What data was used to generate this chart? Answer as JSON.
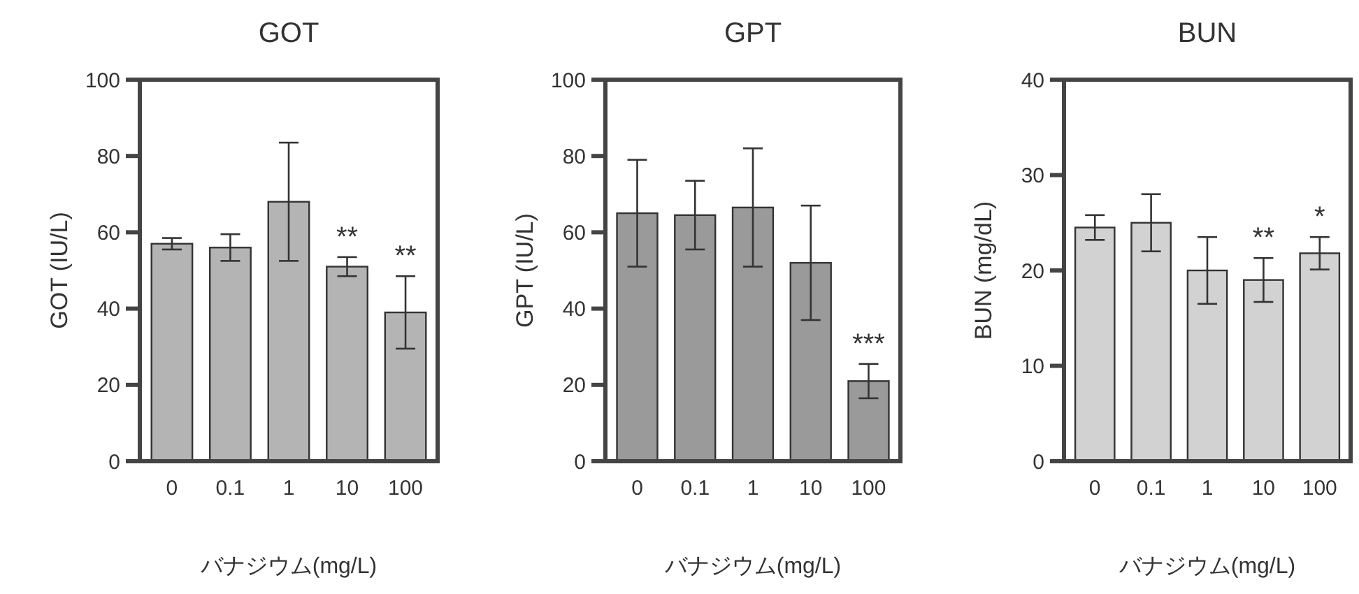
{
  "chart_data": [
    {
      "type": "bar",
      "title": "GOT",
      "xlabel": "バナジウム(mg/L)",
      "ylabel": "GOT (IU/L)",
      "categories": [
        "0",
        "0.1",
        "1",
        "10",
        "100"
      ],
      "values": [
        57,
        56,
        68,
        51,
        39
      ],
      "errors": [
        1.5,
        3.5,
        15.5,
        2.5,
        9.5
      ],
      "color": "#b4b4b4",
      "ylim": [
        0,
        100
      ],
      "yticks": [
        0,
        20,
        40,
        60,
        80,
        100
      ],
      "grid": false,
      "annotations": [
        {
          "text": "**",
          "x": "10",
          "y": 53.5
        },
        {
          "text": "**",
          "x": "100",
          "y": 48.5
        }
      ]
    },
    {
      "type": "bar",
      "title": "GPT",
      "xlabel": "バナジウム(mg/L)",
      "ylabel": "GPT (IU/L)",
      "categories": [
        "0",
        "0.1",
        "1",
        "10",
        "100"
      ],
      "values": [
        65,
        64.5,
        66.5,
        52,
        21
      ],
      "errors": [
        14,
        9,
        15.5,
        15,
        4.5
      ],
      "color": "#9a9a9a",
      "ylim": [
        0,
        100
      ],
      "yticks": [
        0,
        20,
        40,
        60,
        80,
        100
      ],
      "grid": false,
      "annotations": [
        {
          "text": "***",
          "x": "100",
          "y": 25.5
        }
      ]
    },
    {
      "type": "bar",
      "title": "BUN",
      "xlabel": "バナジウム(mg/L)",
      "ylabel": "BUN (mg/dL)",
      "categories": [
        "0",
        "0.1",
        "1",
        "10",
        "100"
      ],
      "values": [
        24.5,
        25,
        20,
        19,
        21.8
      ],
      "errors": [
        1.3,
        3,
        3.5,
        2.3,
        1.7
      ],
      "color": "#d2d2d2",
      "ylim": [
        0,
        40
      ],
      "yticks": [
        0,
        10,
        20,
        30,
        40
      ],
      "grid": false,
      "annotations": [
        {
          "text": "**",
          "x": "10",
          "y": 21.3
        },
        {
          "text": "*",
          "x": "100",
          "y": 23.5
        }
      ]
    }
  ]
}
